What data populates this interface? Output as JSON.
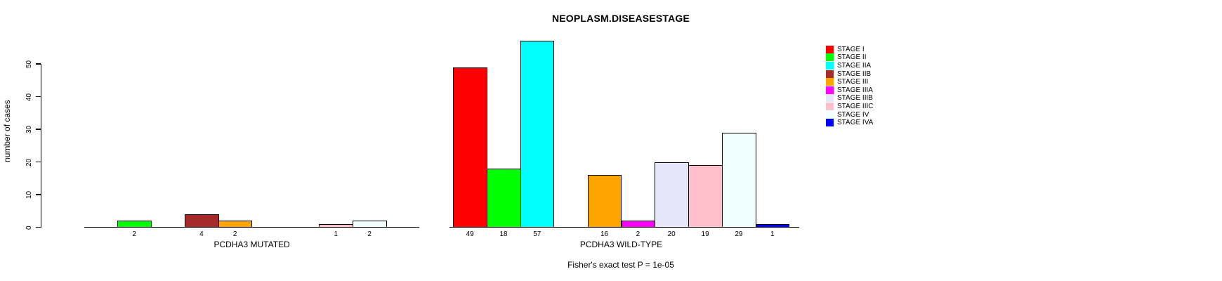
{
  "title": "NEOPLASM.DISEASESTAGE",
  "chart_data": {
    "type": "bar",
    "title": "NEOPLASM.DISEASESTAGE",
    "xlabel": "",
    "ylabel": "number of cases",
    "ylim": [
      0,
      58
    ],
    "yticks": [
      0,
      10,
      20,
      30,
      40,
      50
    ],
    "grid": false,
    "legend_position": "right",
    "categories": [
      "STAGE I",
      "STAGE II",
      "STAGE IIA",
      "STAGE IIB",
      "STAGE III",
      "STAGE IIIA",
      "STAGE IIIB",
      "STAGE IIIC",
      "STAGE IV",
      "STAGE IVA"
    ],
    "colors": [
      "#FF0000",
      "#00FF00",
      "#00FFFF",
      "#A52A2A",
      "#FFA500",
      "#FF00FF",
      "#E6E6FA",
      "#FFC0CB",
      "#F0FFFF",
      "#0000FF"
    ],
    "series": [
      {
        "name": "PCDHA3 MUTATED",
        "values": [
          0,
          2,
          0,
          4,
          2,
          0,
          0,
          1,
          2,
          0
        ]
      },
      {
        "name": "PCDHA3 WILD-TYPE",
        "values": [
          49,
          18,
          57,
          0,
          16,
          2,
          20,
          19,
          29,
          1
        ]
      }
    ],
    "bar_value_labels": {
      "PCDHA3 MUTATED": [
        null,
        2,
        null,
        4,
        2,
        null,
        null,
        1,
        2,
        null
      ],
      "PCDHA3 WILD-TYPE": [
        49,
        18,
        57,
        null,
        16,
        2,
        20,
        19,
        29,
        1
      ]
    },
    "annotation": "Fisher's exact test P = 1e-05"
  }
}
